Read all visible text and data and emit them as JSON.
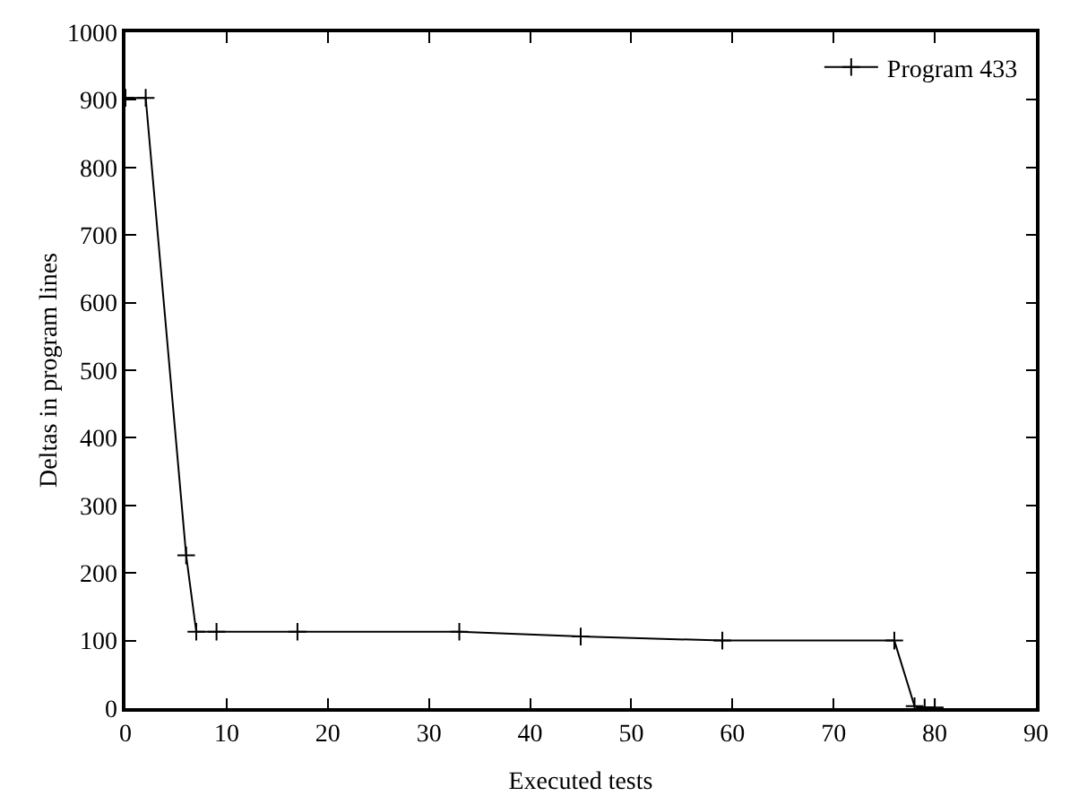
{
  "chart_data": {
    "type": "line",
    "xlabel": "Executed tests",
    "ylabel": "Deltas in program lines",
    "x": [
      0,
      2,
      6,
      7,
      9,
      17,
      33,
      45,
      59,
      76,
      78,
      79,
      80
    ],
    "series": [
      {
        "name": "Program 433",
        "color": "#000000",
        "values": [
          903,
          903,
          226,
          113,
          113,
          113,
          113,
          106,
          100,
          100,
          3,
          1,
          1
        ]
      }
    ],
    "xlim": [
      0,
      90
    ],
    "xticks": [
      0,
      10,
      20,
      30,
      40,
      50,
      60,
      70,
      80,
      90
    ],
    "ylim": [
      0,
      1000
    ],
    "yticks": [
      0,
      100,
      200,
      300,
      400,
      500,
      600,
      700,
      800,
      900,
      1000
    ],
    "legend": "top right",
    "marker": "cross",
    "line_style": "solid",
    "grid": false
  }
}
